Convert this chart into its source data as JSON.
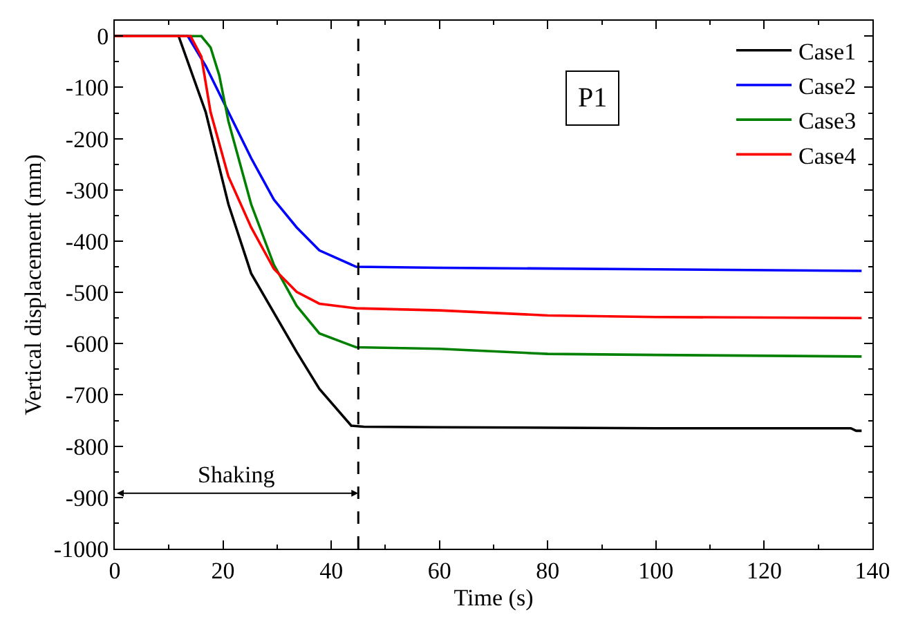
{
  "chart_data": {
    "type": "line",
    "xlabel": "Time (s)",
    "ylabel": "Vertical displacement (mm)",
    "xlim": [
      0,
      140
    ],
    "xticks": [
      0,
      20,
      40,
      60,
      80,
      100,
      120,
      140
    ],
    "ylim": [
      -1000,
      30
    ],
    "yticks": [
      -1000,
      -900,
      -800,
      -700,
      -600,
      -500,
      -400,
      -300,
      -200,
      -100,
      0
    ],
    "legend": "top right",
    "line_style": "solid",
    "marker": "none",
    "annotations": [
      "P1",
      "Shaking"
    ],
    "ref_lines": [
      {
        "axis": "x",
        "value": 45,
        "line_style": "dashed",
        "color": "#000000"
      }
    ],
    "series": [
      {
        "name": "Case1",
        "color": "#000000",
        "x": [
          0,
          11.8,
          16.8,
          21,
          25.2,
          33.6,
          37.8,
          43.7,
          46,
          60,
          100,
          136,
          137,
          138
        ],
        "values": [
          0,
          0,
          -148,
          -328,
          -463,
          -616,
          -688,
          -760,
          -762,
          -763,
          -765,
          -765,
          -770,
          -770
        ]
      },
      {
        "name": "Case2",
        "color": "#0000ff",
        "x": [
          0,
          13.5,
          16.8,
          21,
          25.2,
          29.4,
          33.6,
          37.8,
          44.6,
          60,
          100,
          138
        ],
        "values": [
          0,
          0,
          -58,
          -148,
          -238,
          -319,
          -373,
          -418,
          -450,
          -452,
          -455,
          -458
        ]
      },
      {
        "name": "Case3",
        "color": "#008000",
        "x": [
          0,
          16,
          17.7,
          19.3,
          21,
          25.2,
          29.4,
          33.6,
          37.8,
          44.6,
          60,
          80,
          100,
          138
        ],
        "values": [
          0,
          0,
          -22,
          -76,
          -166,
          -328,
          -446,
          -526,
          -580,
          -607,
          -610,
          -620,
          -622,
          -625
        ]
      },
      {
        "name": "Case4",
        "color": "#ff0000",
        "x": [
          0,
          14,
          16,
          17.7,
          21,
          25.2,
          29.4,
          33.6,
          37.8,
          44.6,
          60,
          80,
          100,
          138
        ],
        "values": [
          0,
          0,
          -40,
          -148,
          -274,
          -373,
          -454,
          -499,
          -522,
          -531,
          -535,
          -545,
          -548,
          -550
        ]
      }
    ]
  }
}
